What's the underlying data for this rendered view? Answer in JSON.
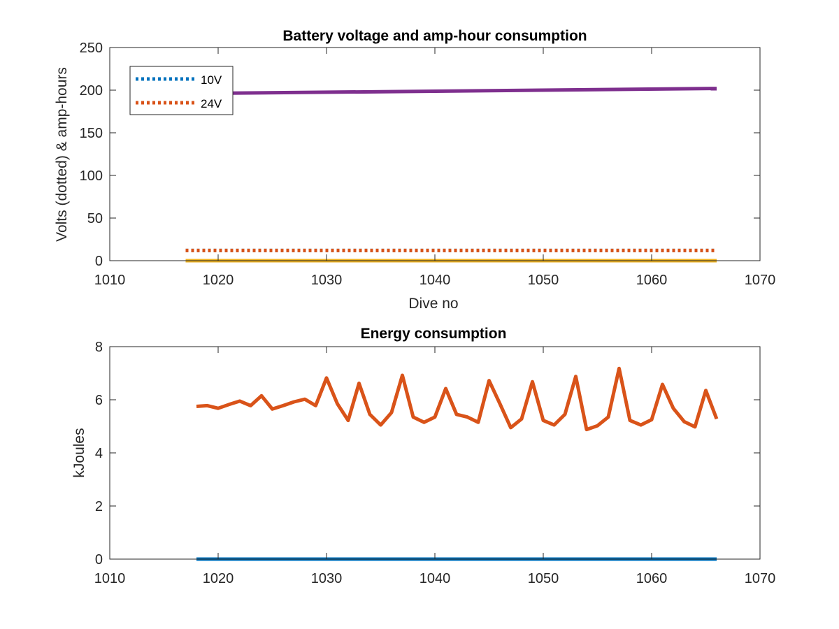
{
  "chart_data": [
    {
      "type": "line",
      "title": "Battery voltage and amp-hour consumption",
      "xlabel": "Dive no",
      "ylabel": "Volts (dotted) & amp-hours",
      "xlim": [
        1010,
        1070
      ],
      "ylim": [
        0,
        250
      ],
      "xticks": [
        1010,
        1020,
        1030,
        1040,
        1050,
        1060,
        1070
      ],
      "yticks": [
        0,
        50,
        100,
        150,
        200,
        250
      ],
      "grid": false,
      "legend_position": "top-left",
      "series": [
        {
          "name": "10V",
          "style": "dotted",
          "color": "#0072BD",
          "x": [
            1017,
            1066
          ],
          "y": [
            12,
            12
          ]
        },
        {
          "name": "24V",
          "style": "dotted",
          "color": "#D95319",
          "x": [
            1017,
            1066
          ],
          "y": [
            12,
            12
          ]
        },
        {
          "style": "solid",
          "color": "#EDB120",
          "x": [
            1017,
            1066
          ],
          "y": [
            0,
            0
          ]
        },
        {
          "style": "solid",
          "color": "#7E2F8E",
          "x": [
            1017,
            1066
          ],
          "y": [
            196,
            202
          ]
        }
      ]
    },
    {
      "type": "line",
      "title": "Energy consumption",
      "xlabel": "",
      "ylabel": "kJoules",
      "xlim": [
        1010,
        1070
      ],
      "ylim": [
        0,
        8
      ],
      "xticks": [
        1010,
        1020,
        1030,
        1040,
        1050,
        1060,
        1070
      ],
      "yticks": [
        0,
        2,
        4,
        6,
        8
      ],
      "grid": false,
      "series": [
        {
          "style": "solid",
          "color": "#0072BD",
          "x": [
            1018,
            1066
          ],
          "y": [
            0,
            0
          ]
        },
        {
          "style": "solid",
          "color": "#D95319",
          "x": [
            1018,
            1019,
            1020,
            1021,
            1022,
            1023,
            1024,
            1025,
            1026,
            1027,
            1028,
            1029,
            1030,
            1031,
            1032,
            1033,
            1034,
            1035,
            1036,
            1037,
            1038,
            1039,
            1040,
            1041,
            1042,
            1043,
            1044,
            1045,
            1046,
            1047,
            1048,
            1049,
            1050,
            1051,
            1052,
            1053,
            1054,
            1055,
            1056,
            1057,
            1058,
            1059,
            1060,
            1061,
            1062,
            1063,
            1064,
            1065,
            1066
          ],
          "y": [
            5.75,
            5.78,
            5.68,
            5.82,
            5.95,
            5.78,
            6.15,
            5.65,
            5.78,
            5.92,
            6.02,
            5.78,
            6.82,
            5.85,
            5.22,
            6.62,
            5.45,
            5.05,
            5.52,
            6.92,
            5.35,
            5.15,
            5.35,
            6.42,
            5.45,
            5.35,
            5.15,
            6.72,
            5.85,
            4.95,
            5.28,
            6.68,
            5.22,
            5.05,
            5.45,
            6.88,
            4.88,
            5.02,
            5.35,
            7.18,
            5.22,
            5.05,
            5.25,
            6.58,
            5.68,
            5.18,
            4.98,
            6.35,
            5.28
          ]
        }
      ]
    }
  ]
}
